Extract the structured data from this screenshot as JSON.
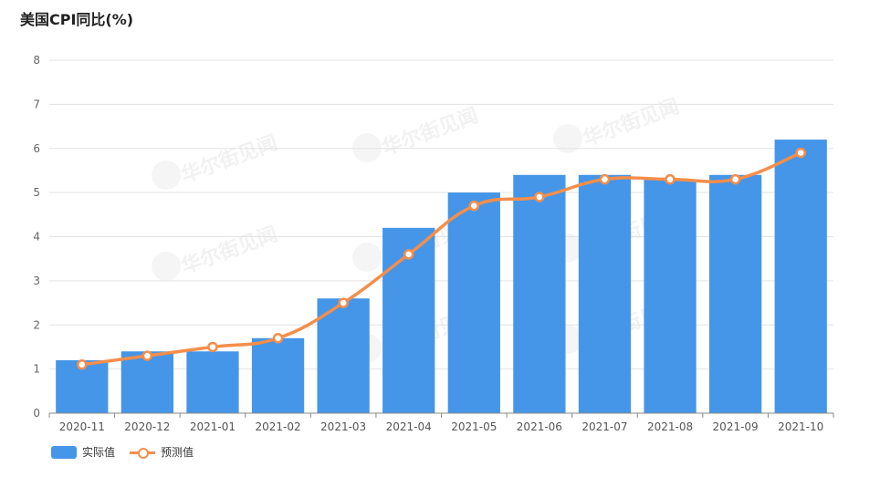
{
  "chart_data": {
    "type": "bar",
    "title": "美国CPI同比(%)",
    "categories": [
      "2020-11",
      "2020-12",
      "2021-01",
      "2021-02",
      "2021-03",
      "2021-04",
      "2021-05",
      "2021-06",
      "2021-07",
      "2021-08",
      "2021-09",
      "2021-10"
    ],
    "series": [
      {
        "name": "实际值",
        "type": "bar",
        "values": [
          1.2,
          1.4,
          1.4,
          1.7,
          2.6,
          4.2,
          5.0,
          5.4,
          5.4,
          5.3,
          5.4,
          6.2
        ]
      },
      {
        "name": "预测值",
        "type": "line",
        "values": [
          1.1,
          1.3,
          1.5,
          1.7,
          2.5,
          3.6,
          4.7,
          4.9,
          5.3,
          5.3,
          5.3,
          5.9
        ]
      }
    ],
    "ylim": [
      0,
      8
    ],
    "yticks": [
      0,
      1,
      2,
      3,
      4,
      5,
      6,
      7,
      8
    ],
    "grid": true,
    "legend_position": "bottom-left",
    "colors": {
      "bar": "#4596e8",
      "line": "#f58e4a"
    }
  },
  "watermark": "华尔街见闻"
}
